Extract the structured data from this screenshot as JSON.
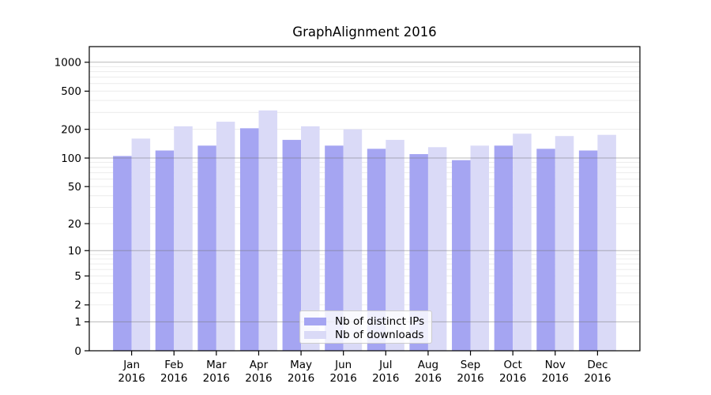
{
  "chart_data": {
    "type": "bar",
    "title": "GraphAlignment 2016",
    "months": [
      "Jan",
      "Feb",
      "Mar",
      "Apr",
      "May",
      "Jun",
      "Jul",
      "Aug",
      "Sep",
      "Oct",
      "Nov",
      "Dec"
    ],
    "year_label": "2016",
    "series": [
      {
        "name": "Nb of distinct IPs",
        "color": "#a5a5f2",
        "values": [
          105,
          120,
          135,
          205,
          155,
          135,
          125,
          110,
          95,
          135,
          125,
          120
        ]
      },
      {
        "name": "Nb of downloads",
        "color": "#dadaf7",
        "values": [
          160,
          215,
          240,
          315,
          215,
          200,
          155,
          130,
          135,
          180,
          170,
          175
        ]
      }
    ],
    "y_axis": {
      "ticks": [
        0,
        1,
        2,
        5,
        10,
        20,
        50,
        100,
        200,
        500,
        1000
      ],
      "scale": "log10(value+1)",
      "max": 1455
    },
    "grid": {
      "on": true,
      "major_color": "rgba(115,115,115,0.5)",
      "minor_color": "#ececec"
    },
    "legend": {
      "position": "lower center"
    },
    "colors": {
      "axis": "#000000",
      "background": "#ffffff"
    }
  }
}
